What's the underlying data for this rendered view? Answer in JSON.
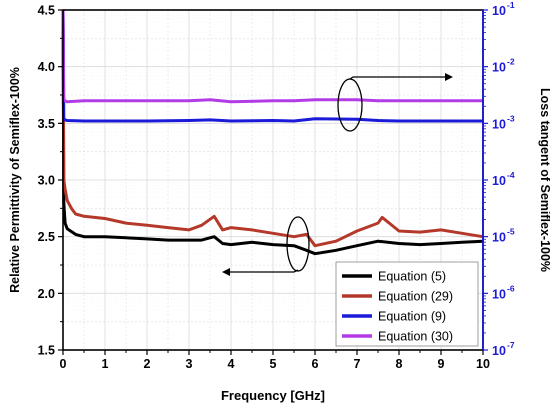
{
  "chart_data": {
    "type": "line",
    "xlabel": "Frequency [GHz]",
    "ylabel": "Relative Permittivity of Semiflex-100%",
    "y2label": "Loss tangent of Semiflex-100%",
    "xlim": [
      0,
      10
    ],
    "ylim": [
      1.5,
      4.5
    ],
    "y2lim": [
      1e-07,
      0.1
    ],
    "y2scale": "log",
    "x_ticks": [
      "0",
      "1",
      "2",
      "3",
      "4",
      "5",
      "6",
      "7",
      "8",
      "9",
      "10"
    ],
    "y_ticks": [
      "1.5",
      "2.0",
      "2.5",
      "3.0",
      "3.5",
      "4.0",
      "4.5"
    ],
    "y2_ticks": [
      "10",
      "10",
      "10",
      "10",
      "10",
      "10",
      "10"
    ],
    "y2_tick_exponents": [
      "-7",
      "-6",
      "-5",
      "-4",
      "-3",
      "-2",
      "-1"
    ],
    "grid": true,
    "legend_position": "bottom-right",
    "colors": {
      "left_axis": "#000000",
      "right_axis": "#1a1ad8",
      "grid": "#d9d9d9"
    },
    "series": [
      {
        "name": "Equation (5)",
        "axis": "left",
        "color": "#000000",
        "x": [
          0.0,
          0.02,
          0.05,
          0.1,
          0.3,
          0.5,
          1,
          1.5,
          2,
          2.5,
          3,
          3.3,
          3.6,
          3.8,
          4,
          4.5,
          5,
          5.5,
          5.8,
          6,
          6.5,
          7,
          7.5,
          8,
          8.5,
          9,
          9.5,
          10
        ],
        "y": [
          4.5,
          2.8,
          2.62,
          2.57,
          2.52,
          2.5,
          2.5,
          2.49,
          2.48,
          2.47,
          2.47,
          2.47,
          2.5,
          2.44,
          2.43,
          2.45,
          2.43,
          2.42,
          2.38,
          2.35,
          2.38,
          2.42,
          2.46,
          2.44,
          2.43,
          2.44,
          2.45,
          2.46
        ]
      },
      {
        "name": "Equation (29)",
        "axis": "left",
        "color": "#b5392a",
        "x": [
          0.0,
          0.02,
          0.05,
          0.1,
          0.2,
          0.3,
          0.5,
          1,
          1.5,
          2,
          2.5,
          3,
          3.3,
          3.6,
          3.8,
          4,
          4.5,
          5,
          5.5,
          5.8,
          6,
          6.5,
          7,
          7.5,
          7.6,
          8,
          8.5,
          9,
          9.5,
          10
        ],
        "y": [
          4.5,
          3.0,
          2.92,
          2.82,
          2.75,
          2.7,
          2.68,
          2.66,
          2.62,
          2.6,
          2.58,
          2.56,
          2.6,
          2.68,
          2.56,
          2.58,
          2.56,
          2.53,
          2.5,
          2.52,
          2.42,
          2.46,
          2.55,
          2.62,
          2.67,
          2.55,
          2.54,
          2.56,
          2.53,
          2.5
        ]
      },
      {
        "name": "Equation (9)",
        "axis": "right",
        "color": "#1a1ad8",
        "x": [
          0.0,
          0.02,
          0.05,
          0.1,
          0.5,
          1,
          2,
          3,
          3.5,
          4,
          5,
          5.5,
          6,
          7,
          7.5,
          8,
          9,
          10
        ],
        "y": [
          0.1,
          0.0012,
          0.00115,
          0.00112,
          0.0011,
          0.0011,
          0.0011,
          0.00112,
          0.00115,
          0.0011,
          0.00112,
          0.0011,
          0.0012,
          0.00118,
          0.00112,
          0.0011,
          0.0011,
          0.0011
        ]
      },
      {
        "name": "Equation (30)",
        "axis": "right",
        "color": "#b23be6",
        "x": [
          0.0,
          0.02,
          0.05,
          0.1,
          0.5,
          1,
          2,
          3,
          3.5,
          4,
          5,
          5.5,
          6,
          7,
          7.5,
          8,
          9,
          10
        ],
        "y": [
          0.1,
          0.0026,
          0.0025,
          0.0024,
          0.0025,
          0.0025,
          0.0025,
          0.0025,
          0.0026,
          0.0024,
          0.0025,
          0.0025,
          0.0026,
          0.0026,
          0.0025,
          0.0025,
          0.0025,
          0.0025
        ]
      }
    ]
  }
}
